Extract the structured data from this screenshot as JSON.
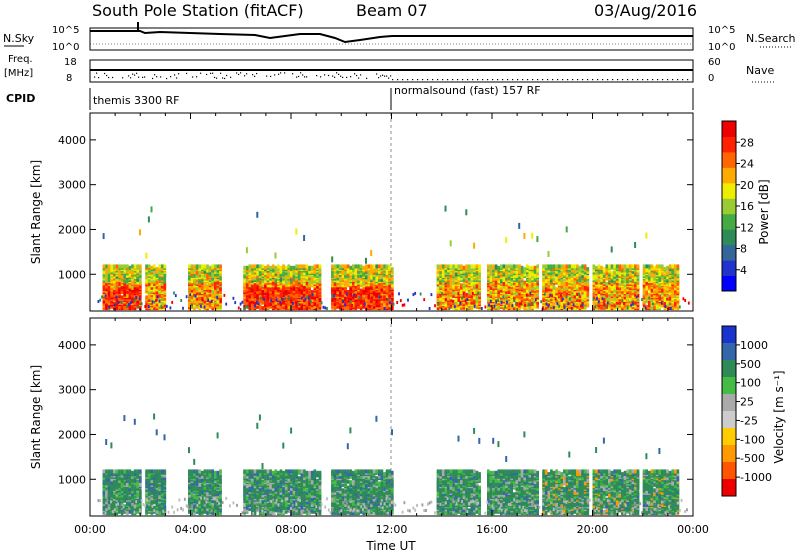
{
  "header": {
    "station": "South Pole Station (fitACF)",
    "beam": "Beam 07",
    "date": "03/Aug/2016"
  },
  "top_panel": {
    "left_label": "N.Sky",
    "right_label": "N.Search",
    "tick_top": "10^5",
    "tick_bottom": "10^0"
  },
  "freq_panel": {
    "left_label_1": "Freq.",
    "left_label_2": "[MHz]",
    "right_label": "Nave",
    "left_ticks": [
      "18",
      "8"
    ],
    "right_ticks": [
      "60",
      "0"
    ]
  },
  "cpid": {
    "label": "CPID",
    "modes": [
      "themis 3300 RF",
      "normalsound (fast) 157 RF"
    ]
  },
  "chart_data": [
    {
      "type": "heatmap",
      "ylabel": "Slant Range [km]",
      "xlabel": "Time UT",
      "x_ticks": [
        "00:00",
        "04:00",
        "08:00",
        "12:00",
        "16:00",
        "20:00",
        "00:00"
      ],
      "y_ticks": [
        "1000",
        "2000",
        "3000",
        "4000"
      ],
      "ylim": [
        180,
        4600
      ],
      "colorbar": {
        "label": "Power [dB]",
        "ticks": [
          "4",
          "8",
          "12",
          "16",
          "20",
          "24",
          "28"
        ],
        "range": [
          0,
          32
        ],
        "colors": [
          "#0000ff",
          "#2233cc",
          "#336699",
          "#2e8b57",
          "#44aa44",
          "#99cc33",
          "#eeee00",
          "#ffaa00",
          "#ff6600",
          "#ff2200",
          "#ee0000"
        ]
      },
      "echo_blocks_hours": [
        [
          0.5,
          2.0
        ],
        [
          2.2,
          3.0
        ],
        [
          3.9,
          5.2
        ],
        [
          6.1,
          9.2
        ],
        [
          9.6,
          12.0
        ],
        [
          13.8,
          15.5
        ],
        [
          15.8,
          17.8
        ],
        [
          18.0,
          19.8
        ],
        [
          20.0,
          21.8
        ],
        [
          22.0,
          23.4
        ]
      ]
    },
    {
      "type": "heatmap",
      "ylabel": "Slant Range [km]",
      "xlabel": "Time UT",
      "x_ticks": [
        "00:00",
        "04:00",
        "08:00",
        "12:00",
        "16:00",
        "20:00",
        "00:00"
      ],
      "y_ticks": [
        "1000",
        "2000",
        "3000",
        "4000"
      ],
      "ylim": [
        180,
        4600
      ],
      "colorbar": {
        "label": "Velocity [m s⁻¹]",
        "ticks": [
          "1000",
          "500",
          "100",
          "25",
          "-25",
          "-100",
          "-500",
          "-1000"
        ],
        "colors": [
          "#1a33cc",
          "#3366aa",
          "#2e8b57",
          "#44bb44",
          "#aaaaaa",
          "#cccccc",
          "#ffcc00",
          "#ff9900",
          "#ff5500",
          "#ee0000"
        ]
      }
    }
  ]
}
